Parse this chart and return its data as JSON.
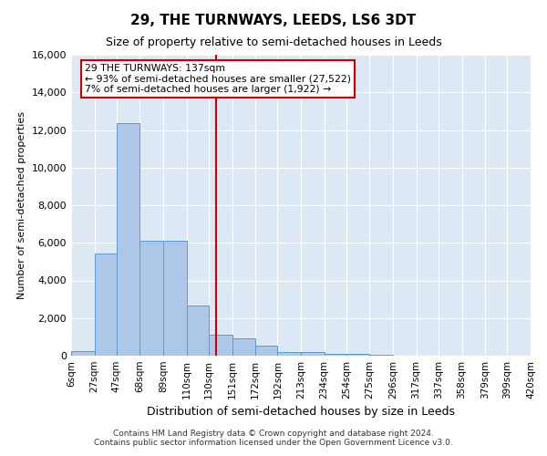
{
  "title": "29, THE TURNWAYS, LEEDS, LS6 3DT",
  "subtitle": "Size of property relative to semi-detached houses in Leeds",
  "xlabel": "Distribution of semi-detached houses by size in Leeds",
  "ylabel": "Number of semi-detached properties",
  "property_size": 137,
  "pct_smaller": 93,
  "count_smaller": 27522,
  "pct_larger": 7,
  "count_larger": 1922,
  "bin_edges": [
    6,
    27,
    47,
    68,
    89,
    110,
    130,
    151,
    172,
    192,
    213,
    234,
    254,
    275,
    296,
    317,
    337,
    358,
    379,
    399,
    420
  ],
  "bin_labels": [
    "6sqm",
    "27sqm",
    "47sqm",
    "68sqm",
    "89sqm",
    "110sqm",
    "130sqm",
    "151sqm",
    "172sqm",
    "192sqm",
    "213sqm",
    "234sqm",
    "254sqm",
    "275sqm",
    "296sqm",
    "317sqm",
    "337sqm",
    "358sqm",
    "379sqm",
    "399sqm",
    "420sqm"
  ],
  "bar_values": [
    220,
    5450,
    12350,
    6100,
    6100,
    2650,
    1100,
    900,
    550,
    200,
    175,
    100,
    75,
    50,
    0,
    0,
    0,
    0,
    0,
    0
  ],
  "bar_color": "#aec6e8",
  "bar_edge_color": "#5b9bd5",
  "red_line_color": "#cc0000",
  "annotation_box_edge_color": "#cc0000",
  "background_color": "#dce9f5",
  "ylim": [
    0,
    16000
  ],
  "yticks": [
    0,
    2000,
    4000,
    6000,
    8000,
    10000,
    12000,
    14000,
    16000
  ],
  "footer_line1": "Contains HM Land Registry data © Crown copyright and database right 2024.",
  "footer_line2": "Contains public sector information licensed under the Open Government Licence v3.0."
}
